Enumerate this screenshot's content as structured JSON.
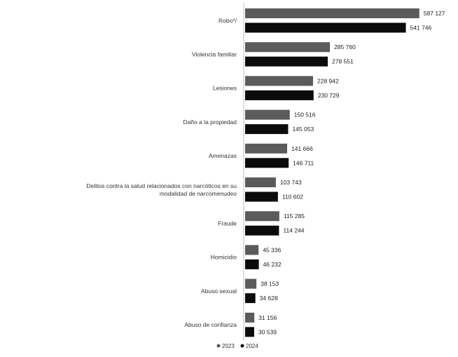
{
  "chart_data": {
    "type": "bar",
    "orientation": "horizontal",
    "categories": [
      [
        "Robo*/"
      ],
      [
        "Violencia familiar"
      ],
      [
        "Lesiones"
      ],
      [
        "Daño a la propiedad"
      ],
      [
        "Amenazas"
      ],
      [
        "Delitos contra la salud relacionados con narcóticos en su",
        "modalidad de narcomenudeo"
      ],
      [
        "Fraude"
      ],
      [
        "Homicidio"
      ],
      [
        "Abuso sexual"
      ],
      [
        "Abuso de confianza"
      ]
    ],
    "series": [
      {
        "name": "2023",
        "color": "#5b5b5b",
        "values": [
          587127,
          285760,
          228942,
          150516,
          141666,
          103743,
          115285,
          45336,
          38153,
          31156
        ]
      },
      {
        "name": "2024",
        "color": "#0b0b0b",
        "values": [
          541746,
          278551,
          230729,
          145053,
          146711,
          110602,
          114244,
          46232,
          34628,
          30539
        ]
      }
    ],
    "data_labels": [
      [
        "587 127",
        "285 760",
        "228 942",
        "150 516",
        "141 666",
        "103 743",
        "115 285",
        "45 336",
        "38 153",
        "31 156"
      ],
      [
        "541 746",
        "278 551",
        "230 729",
        "145 053",
        "146 711",
        "110 602",
        "114 244",
        "46 232",
        "34 628",
        "30 539"
      ]
    ],
    "xlim": [
      0,
      590000
    ],
    "legend": "bottom",
    "grid": false
  }
}
